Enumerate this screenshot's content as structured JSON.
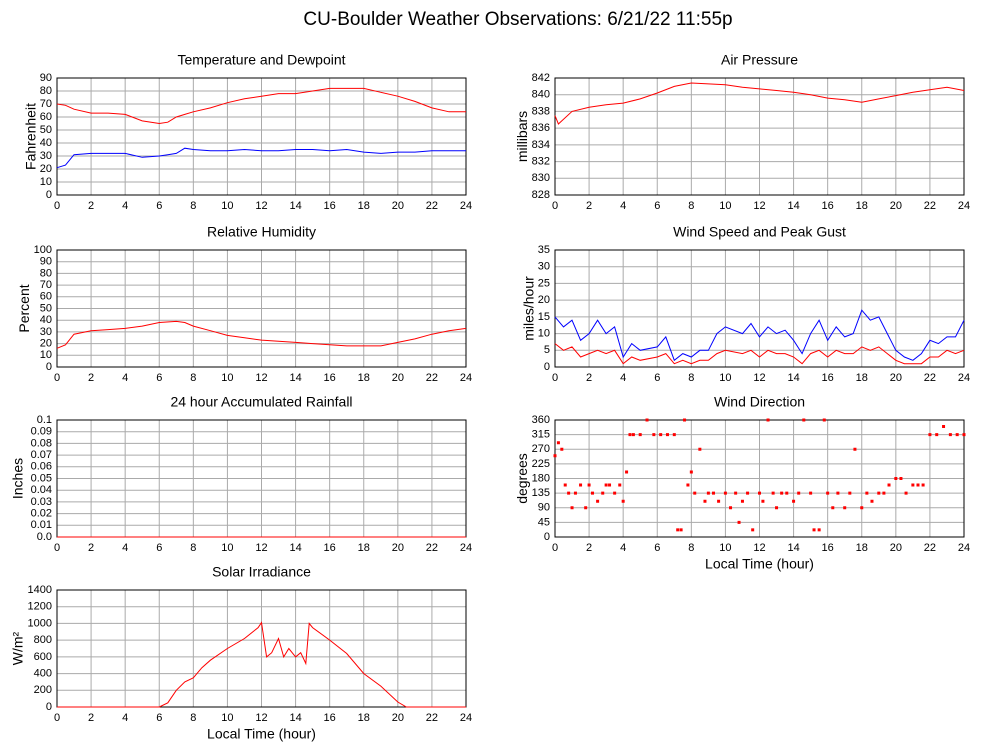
{
  "title": "CU-Boulder Weather Observations: 6/21/22 11:55p",
  "chart_data": [
    {
      "type": "line",
      "title": "Temperature and Dewpoint",
      "ylabel": "Fahrenheit",
      "xlim": [
        0,
        24
      ],
      "xticks": [
        0,
        2,
        4,
        6,
        8,
        10,
        12,
        14,
        16,
        18,
        20,
        22,
        24
      ],
      "ylim": [
        0,
        90
      ],
      "yticks": [
        0,
        10,
        20,
        30,
        40,
        50,
        60,
        70,
        80,
        90
      ],
      "grid": true,
      "x": [
        0,
        0.5,
        1,
        2,
        3,
        4,
        5,
        6,
        6.5,
        7,
        7.5,
        8,
        9,
        10,
        11,
        12,
        13,
        14,
        15,
        16,
        17,
        18,
        19,
        20,
        21,
        22,
        23,
        24
      ],
      "series": [
        {
          "color": "#ff0000",
          "values": [
            70,
            69,
            66,
            63,
            63,
            62,
            57,
            55,
            56,
            60,
            62,
            64,
            67,
            71,
            74,
            76,
            78,
            78,
            80,
            82,
            82,
            82,
            79,
            76,
            72,
            67,
            64,
            64
          ]
        },
        {
          "color": "#0000ff",
          "values": [
            21,
            23,
            31,
            32,
            32,
            32,
            29,
            30,
            31,
            32,
            36,
            35,
            34,
            34,
            35,
            34,
            34,
            35,
            35,
            34,
            35,
            33,
            32,
            33,
            33,
            34,
            34,
            34
          ]
        }
      ]
    },
    {
      "type": "line",
      "title": "Air Pressure",
      "ylabel": "millibars",
      "xlim": [
        0,
        24
      ],
      "xticks": [
        0,
        2,
        4,
        6,
        8,
        10,
        12,
        14,
        16,
        18,
        20,
        22,
        24
      ],
      "ylim": [
        828,
        842
      ],
      "yticks": [
        828,
        830,
        832,
        834,
        836,
        838,
        840,
        842
      ],
      "grid": true,
      "x": [
        0,
        0.2,
        1,
        2,
        3,
        4,
        5,
        6,
        7,
        8,
        9,
        10,
        11,
        12,
        13,
        14,
        15,
        16,
        17,
        18,
        19,
        20,
        21,
        22,
        23,
        24
      ],
      "series": [
        {
          "color": "#ff0000",
          "values": [
            837.5,
            836.5,
            838,
            838.5,
            838.8,
            839,
            839.5,
            840.2,
            841,
            841.4,
            841.3,
            841.2,
            840.9,
            840.7,
            840.5,
            840.3,
            840,
            839.6,
            839.4,
            839.1,
            839.5,
            839.9,
            840.3,
            840.6,
            840.9,
            840.5
          ]
        }
      ]
    },
    {
      "type": "line",
      "title": "Relative Humidity",
      "ylabel": "Percent",
      "xlim": [
        0,
        24
      ],
      "xticks": [
        0,
        2,
        4,
        6,
        8,
        10,
        12,
        14,
        16,
        18,
        20,
        22,
        24
      ],
      "ylim": [
        0,
        100
      ],
      "yticks": [
        0,
        10,
        20,
        30,
        40,
        50,
        60,
        70,
        80,
        90,
        100
      ],
      "grid": true,
      "x": [
        0,
        0.5,
        1,
        2,
        3,
        4,
        5,
        6,
        7,
        7.5,
        8,
        9,
        10,
        11,
        12,
        13,
        14,
        15,
        16,
        17,
        18,
        19,
        20,
        21,
        22,
        23,
        24
      ],
      "series": [
        {
          "color": "#ff0000",
          "values": [
            16,
            19,
            28,
            31,
            32,
            33,
            35,
            38,
            39,
            38,
            35,
            31,
            27,
            25,
            23,
            22,
            21,
            20,
            19,
            18,
            18,
            18,
            21,
            24,
            28,
            31,
            33
          ]
        }
      ]
    },
    {
      "type": "line",
      "title": "Wind Speed and Peak Gust",
      "ylabel": "miles/hour",
      "xlim": [
        0,
        24
      ],
      "xticks": [
        0,
        2,
        4,
        6,
        8,
        10,
        12,
        14,
        16,
        18,
        20,
        22,
        24
      ],
      "ylim": [
        0,
        35
      ],
      "yticks": [
        0,
        5,
        10,
        15,
        20,
        25,
        30,
        35
      ],
      "grid": true,
      "x": [
        0,
        0.5,
        1,
        1.5,
        2,
        2.5,
        3,
        3.5,
        4,
        4.5,
        5,
        6,
        6.5,
        7,
        7.5,
        8,
        8.5,
        9,
        9.5,
        10,
        11,
        11.5,
        12,
        12.5,
        13,
        13.5,
        14,
        14.5,
        15,
        15.5,
        16,
        16.5,
        17,
        17.5,
        18,
        18.5,
        19,
        19.5,
        20,
        20.5,
        21,
        21.5,
        22,
        22.5,
        23,
        23.5,
        24
      ],
      "series": [
        {
          "color": "#0000ff",
          "values": [
            15,
            12,
            14,
            8,
            10,
            14,
            10,
            12,
            3,
            7,
            5,
            6,
            9,
            2,
            4,
            3,
            5,
            5,
            10,
            12,
            10,
            13,
            9,
            12,
            10,
            11,
            8,
            4,
            10,
            14,
            8,
            12,
            9,
            10,
            17,
            14,
            15,
            10,
            5,
            3,
            2,
            4,
            8,
            7,
            9,
            9,
            14
          ]
        },
        {
          "color": "#ff0000",
          "values": [
            7,
            5,
            6,
            3,
            4,
            5,
            4,
            5,
            1,
            3,
            2,
            3,
            4,
            1,
            2,
            1,
            2,
            2,
            4,
            5,
            4,
            5,
            3,
            5,
            4,
            4,
            3,
            1,
            4,
            5,
            3,
            5,
            4,
            4,
            6,
            5,
            6,
            4,
            2,
            1,
            1,
            1,
            3,
            3,
            5,
            4,
            5
          ]
        }
      ]
    },
    {
      "type": "line",
      "title": "24 hour Accumulated Rainfall",
      "ylabel": "Inches",
      "xlim": [
        0,
        24
      ],
      "xticks": [
        0,
        2,
        4,
        6,
        8,
        10,
        12,
        14,
        16,
        18,
        20,
        22,
        24
      ],
      "ylim": [
        0,
        0.1
      ],
      "yticks": [
        {
          "value": 0,
          "label": "0.0"
        },
        0.01,
        0.02,
        0.03,
        0.04,
        0.05,
        0.06,
        0.07,
        0.08,
        0.09,
        0.1
      ],
      "grid": true,
      "x": [
        0,
        24
      ],
      "series": [
        {
          "color": "#ff0000",
          "values": [
            0,
            0
          ]
        }
      ]
    },
    {
      "type": "scatter",
      "title": "Wind Direction",
      "ylabel": "degrees",
      "xlabel": "Local Time (hour)",
      "xlim": [
        0,
        24
      ],
      "xticks": [
        0,
        2,
        4,
        6,
        8,
        10,
        12,
        14,
        16,
        18,
        20,
        22,
        24
      ],
      "ylim": [
        0,
        360
      ],
      "yticks": [
        0,
        45,
        90,
        135,
        180,
        225,
        270,
        315,
        360
      ],
      "grid": true,
      "x": [
        0,
        0.2,
        0.4,
        0.6,
        0.8,
        1,
        1.2,
        1.5,
        1.8,
        2,
        2.2,
        2.5,
        2.8,
        3,
        3.2,
        3.5,
        3.8,
        4,
        4.2,
        4.4,
        4.6,
        5,
        5.4,
        5.8,
        6.2,
        6.6,
        7,
        7.2,
        7.4,
        7.6,
        7.8,
        8,
        8.2,
        8.5,
        8.8,
        9,
        9.3,
        9.6,
        10,
        10.3,
        10.6,
        10.8,
        11,
        11.3,
        11.6,
        12,
        12.2,
        12.5,
        12.8,
        13,
        13.3,
        13.6,
        14,
        14.3,
        14.6,
        15,
        15.2,
        15.5,
        15.8,
        16,
        16.3,
        16.6,
        17,
        17.3,
        17.6,
        18,
        18.3,
        18.6,
        19,
        19.3,
        19.6,
        20,
        20.3,
        20.6,
        21,
        21.3,
        21.6,
        22,
        22.4,
        22.8,
        23.2,
        23.6,
        24
      ],
      "series": [
        {
          "color": "#ff0000",
          "values": [
            250,
            290,
            270,
            160,
            135,
            90,
            135,
            160,
            90,
            160,
            135,
            110,
            135,
            160,
            160,
            135,
            160,
            110,
            200,
            315,
            315,
            315,
            360,
            315,
            315,
            315,
            315,
            22,
            22,
            360,
            160,
            200,
            135,
            270,
            110,
            135,
            135,
            110,
            135,
            90,
            135,
            45,
            110,
            135,
            22,
            135,
            110,
            360,
            135,
            90,
            135,
            135,
            110,
            135,
            360,
            135,
            22,
            22,
            360,
            135,
            90,
            135,
            90,
            135,
            270,
            90,
            135,
            110,
            135,
            135,
            160,
            180,
            180,
            135,
            160,
            160,
            160,
            315,
            315,
            340,
            315,
            315,
            315
          ]
        }
      ]
    },
    {
      "type": "line",
      "title": "Solar Irradiance",
      "ylabel": "W/m²",
      "xlabel": "Local Time (hour)",
      "xlim": [
        0,
        24
      ],
      "xticks": [
        0,
        2,
        4,
        6,
        8,
        10,
        12,
        14,
        16,
        18,
        20,
        22,
        24
      ],
      "ylim": [
        0,
        1400
      ],
      "yticks": [
        0,
        200,
        400,
        600,
        800,
        1000,
        1200,
        1400
      ],
      "grid": true,
      "x": [
        0,
        6,
        6.5,
        7,
        7.5,
        8,
        8.5,
        9,
        10,
        11,
        11.8,
        12,
        12.3,
        12.6,
        13,
        13.3,
        13.6,
        14,
        14.3,
        14.6,
        14.8,
        15,
        16,
        17,
        18,
        19,
        20,
        20.5,
        24
      ],
      "series": [
        {
          "color": "#ff0000",
          "values": [
            0,
            0,
            50,
            200,
            300,
            350,
            470,
            560,
            700,
            820,
            950,
            1010,
            600,
            650,
            820,
            600,
            700,
            600,
            650,
            520,
            1000,
            950,
            800,
            640,
            400,
            250,
            60,
            0,
            0
          ]
        }
      ]
    }
  ]
}
